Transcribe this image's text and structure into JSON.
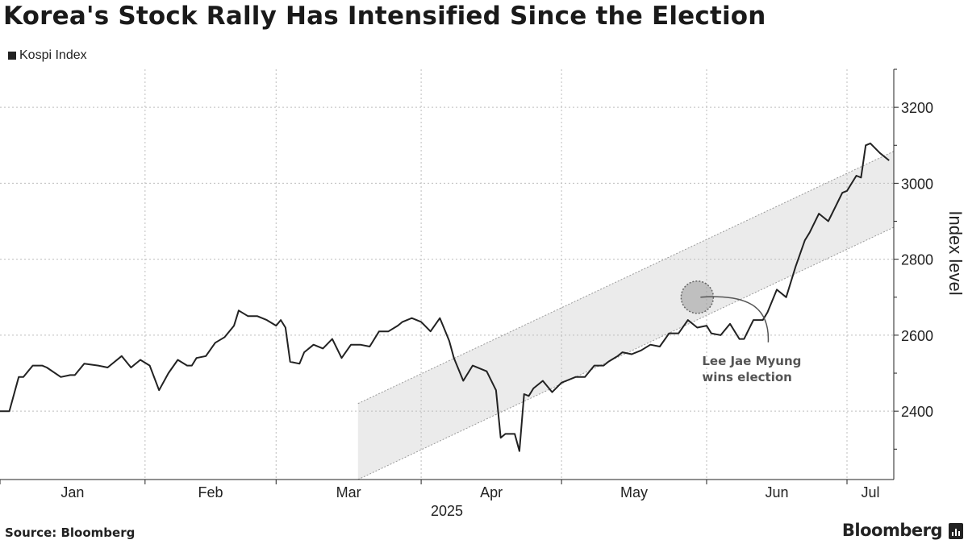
{
  "title": "Korea's Stock Rally Has Intensified Since the Election",
  "legend": {
    "label": "Kospi Index",
    "color": "#222222"
  },
  "source": "Source: Bloomberg",
  "brand": "Bloomberg",
  "brand_icon": "bloomberg-terminal-icon",
  "colors": {
    "line": "#222222",
    "band": "#ebebeb",
    "grid": "#bdbdbd",
    "marker": "#9a9a9a"
  },
  "chart_data": {
    "type": "line",
    "title": "Korea's Stock Rally Has Intensified Since the Election",
    "ylabel": "Index level",
    "xlabel": "2025",
    "year_label": "2025",
    "ylim": [
      2220,
      3300
    ],
    "yticks": [
      2400,
      2600,
      2800,
      3000,
      3200
    ],
    "xlim": [
      0,
      191
    ],
    "month_boundaries": [
      0,
      31,
      59,
      90,
      120,
      151,
      181
    ],
    "month_labels": [
      {
        "label": "Jan",
        "day": 15.5
      },
      {
        "label": "Feb",
        "day": 45
      },
      {
        "label": "Mar",
        "day": 74.5
      },
      {
        "label": "Apr",
        "day": 105
      },
      {
        "label": "May",
        "day": 135.5
      },
      {
        "label": "Jun",
        "day": 166
      },
      {
        "label": "Jul",
        "day": 186
      }
    ],
    "grid": true,
    "series": [
      {
        "name": "Kospi Index",
        "x": [
          0,
          2,
          4,
          5,
          7,
          9,
          10,
          13,
          15,
          16,
          18,
          21,
          23,
          26,
          28,
          30,
          32,
          34,
          36,
          38,
          40,
          41,
          42,
          44,
          46,
          48,
          50,
          51,
          53,
          55,
          57,
          59,
          60,
          61,
          62,
          64,
          65,
          67,
          69,
          71,
          73,
          75,
          77,
          79,
          81,
          83,
          85,
          86,
          88,
          90,
          92,
          94,
          95,
          96,
          97,
          99,
          101,
          104,
          106,
          107,
          108,
          110,
          111,
          112,
          113,
          114,
          116,
          118,
          120,
          121,
          123,
          125,
          127,
          129,
          130,
          132,
          133,
          135,
          137,
          139,
          141,
          143,
          145,
          147,
          149,
          151,
          152,
          154,
          156,
          158,
          159,
          161,
          163,
          164,
          165,
          166,
          168,
          170,
          172,
          173,
          175,
          177,
          179,
          180,
          181,
          183,
          184,
          185,
          186,
          188,
          190
        ],
        "y": [
          2400,
          2400,
          2490,
          2490,
          2520,
          2520,
          2515,
          2490,
          2495,
          2495,
          2525,
          2520,
          2515,
          2545,
          2515,
          2535,
          2520,
          2455,
          2500,
          2535,
          2520,
          2520,
          2540,
          2545,
          2580,
          2595,
          2625,
          2665,
          2650,
          2650,
          2640,
          2625,
          2640,
          2620,
          2530,
          2525,
          2555,
          2575,
          2565,
          2590,
          2540,
          2575,
          2575,
          2570,
          2610,
          2610,
          2625,
          2635,
          2645,
          2635,
          2610,
          2645,
          2615,
          2585,
          2540,
          2480,
          2520,
          2505,
          2455,
          2330,
          2340,
          2340,
          2295,
          2445,
          2440,
          2460,
          2480,
          2450,
          2475,
          2480,
          2490,
          2490,
          2520,
          2520,
          2530,
          2545,
          2555,
          2550,
          2560,
          2575,
          2570,
          2605,
          2605,
          2640,
          2620,
          2625,
          2605,
          2600,
          2630,
          2590,
          2590,
          2640,
          2640,
          2660,
          2690,
          2720,
          2700,
          2780,
          2850,
          2870,
          2920,
          2900,
          2950,
          2975,
          2980,
          3020,
          3015,
          3100,
          3105,
          3080,
          3060
        ]
      }
    ],
    "annotation": {
      "label_line1": "Lee Jae Myung",
      "label_line2": "wins election",
      "x": 149,
      "y": 2700
    },
    "band": {
      "start_day": 76.5,
      "lower_start": 2220,
      "upper_start": 2420,
      "slope_per_day": 5.8
    }
  }
}
